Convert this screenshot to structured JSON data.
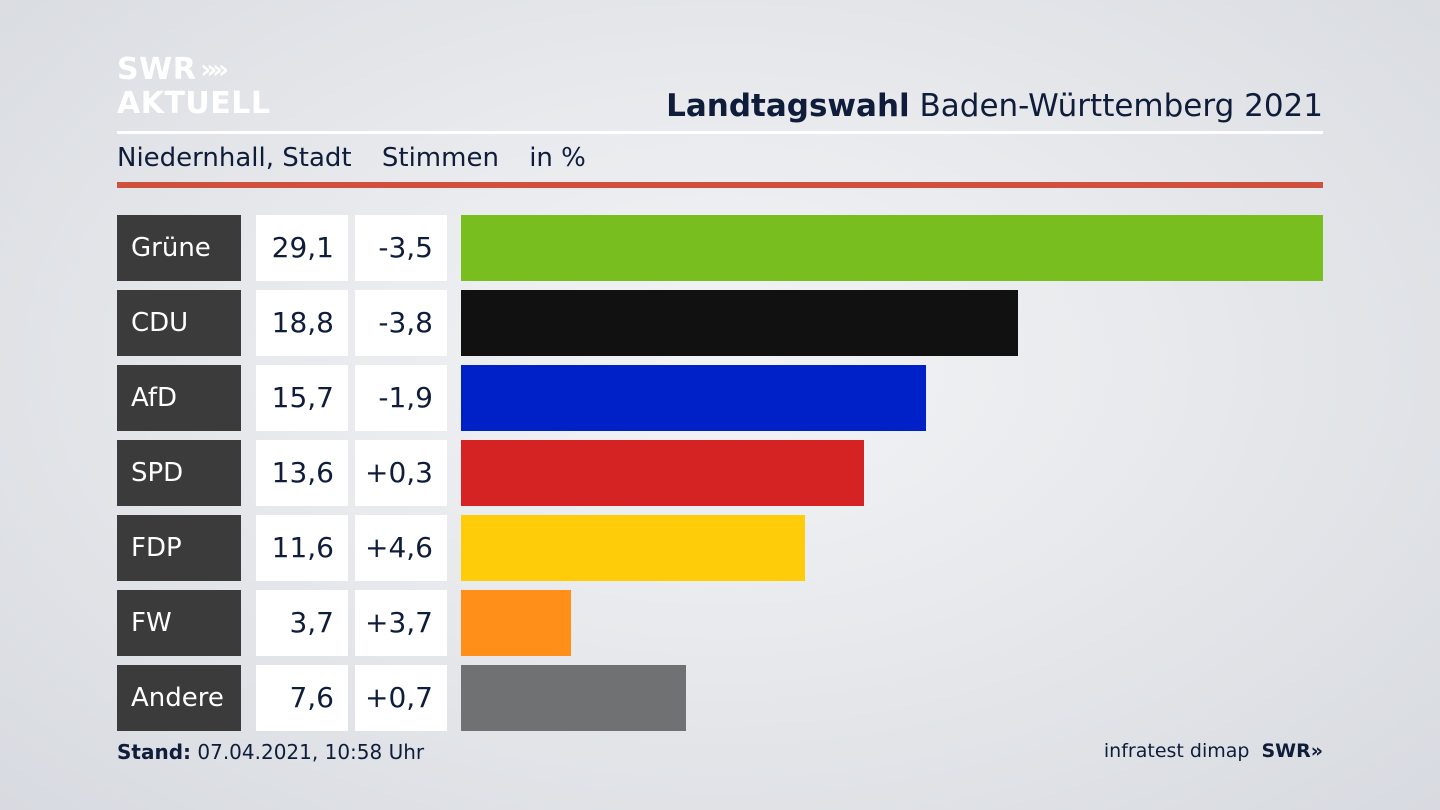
{
  "brand": {
    "logo_line1": "SWR",
    "logo_arrows": "»»",
    "logo_line2": "AKTUELL",
    "footer_swr": "SWR»"
  },
  "header": {
    "title_bold": "Landtagswahl",
    "title_rest": " Baden-Württemberg 2021"
  },
  "subheader": {
    "place": "Niedernhall, Stadt",
    "metric": "Stimmen",
    "unit": "in %"
  },
  "footer": {
    "stand_label": "Stand:",
    "stand_value": " 07.04.2021, 10:58 Uhr",
    "source": "infratest dimap"
  },
  "chart_data": {
    "type": "bar",
    "orientation": "horizontal",
    "categories": [
      "Grüne",
      "CDU",
      "AfD",
      "SPD",
      "FDP",
      "FW",
      "Andere"
    ],
    "values": [
      29.1,
      18.8,
      15.7,
      13.6,
      11.6,
      3.7,
      7.6
    ],
    "value_labels": [
      "29,1",
      "18,8",
      "15,7",
      "13,6",
      "11,6",
      "3,7",
      "7,6"
    ],
    "diff_labels": [
      "-3,5",
      "-3,8",
      "-1,9",
      "+0,3",
      "+4,6",
      "+3,7",
      "+0,7"
    ],
    "colors": [
      "#78be1e",
      "#111111",
      "#0021c8",
      "#d52222",
      "#ffcc0a",
      "#ff8f18",
      "#707172"
    ],
    "title": "Landtagswahl Baden-Württemberg 2021",
    "xlabel": "",
    "ylabel": "",
    "xlim": [
      0,
      29.1
    ],
    "grid": false,
    "legend": "none"
  }
}
